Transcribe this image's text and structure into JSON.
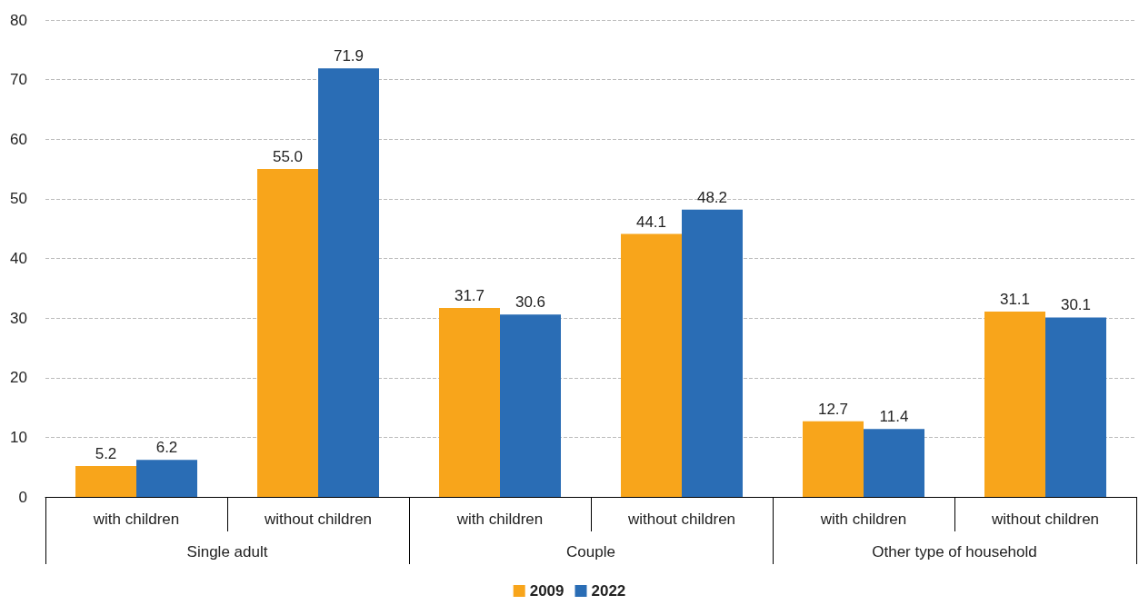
{
  "chart_data": {
    "type": "bar",
    "categories": [
      "with children",
      "without children",
      "with children",
      "without children",
      "with children",
      "without children"
    ],
    "annotations": [
      "Single adult",
      "Couple",
      "Other type of household"
    ],
    "series": [
      {
        "name": "2009",
        "color": "#f8a51b",
        "values": [
          5.2,
          55.0,
          31.7,
          44.1,
          12.7,
          31.1
        ],
        "value_labels": [
          "5.2",
          "55.0",
          "31.7",
          "44.1",
          "12.7",
          "31.1"
        ]
      },
      {
        "name": "2022",
        "color": "#2a6db5",
        "values": [
          6.2,
          71.9,
          30.6,
          48.2,
          11.4,
          30.1
        ],
        "value_labels": [
          "6.2",
          "71.9",
          "30.6",
          "48.2",
          "11.4",
          "30.1"
        ]
      }
    ],
    "ylim": [
      0,
      80
    ],
    "yticks": [
      0,
      10,
      20,
      30,
      40,
      50,
      60,
      70,
      80
    ],
    "grid": "y",
    "legend": "bottom"
  }
}
